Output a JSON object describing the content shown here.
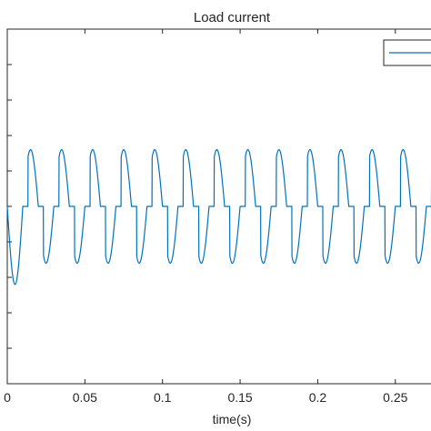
{
  "chart_data": {
    "type": "line",
    "title": "Load current",
    "xlabel": "time(s)",
    "ylabel": "",
    "xlim": [
      0,
      0.28
    ],
    "ylim": [
      -1.25,
      1.25
    ],
    "x_ticks": [
      0,
      0.05,
      0.1,
      0.15,
      0.2,
      0.25
    ],
    "x_tick_labels": [
      "0",
      "0.05",
      "0.1",
      "0.15",
      "0.2",
      "0.25"
    ],
    "y_ticks": [
      -1.0,
      -0.75,
      -0.5,
      -0.25,
      0,
      0.25,
      0.5,
      0.75,
      1.0
    ],
    "grid": false,
    "legend": {
      "position": "top-right",
      "entries": [
        ""
      ]
    },
    "series": [
      {
        "color": "#0072BD",
        "waveform": "phase-controlled sine, 50 Hz",
        "frequency_hz": 50,
        "peak": 0.4,
        "conduction_start_deg": 60,
        "first_cycle_trough": -0.55,
        "points": [
          {
            "x": 0.0,
            "y": 0.0
          },
          {
            "x": 0.0033,
            "y": -0.55
          },
          {
            "x": 0.0067,
            "y": 0.0
          },
          {
            "x": 0.0133,
            "y": 0.4
          },
          {
            "x": 0.0167,
            "y": 0.0
          },
          {
            "x": 0.0233,
            "y": -0.4
          },
          {
            "x": 0.0267,
            "y": 0.0
          },
          {
            "x": 0.0333,
            "y": 0.4
          },
          {
            "x": 0.0367,
            "y": 0.0
          },
          {
            "x": 0.0433,
            "y": -0.4
          }
        ]
      }
    ]
  }
}
